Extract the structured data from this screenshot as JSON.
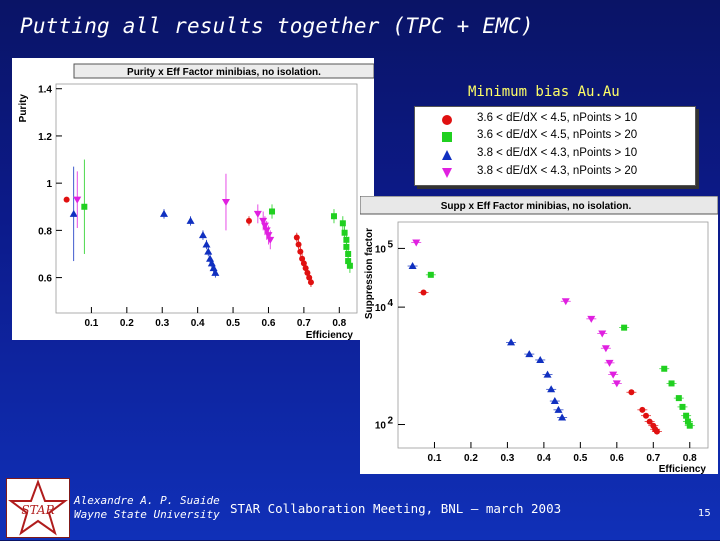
{
  "slide": {
    "title": "Putting all results together (TPC + EMC)",
    "min_bias_label": "Minimum bias Au.Au",
    "author_line1": "Alexandre A. P. Suaide",
    "author_line2": "Wayne State University",
    "meeting": "STAR Collaboration Meeting, BNL – march 2003",
    "page_number": "15",
    "logo_text": "STAR"
  },
  "legend": [
    {
      "symbol": "circle",
      "color": "#e01010",
      "label": "3.6 < dE/dX < 4.5, nPoints > 10"
    },
    {
      "symbol": "square",
      "color": "#20d020",
      "label": "3.6 < dE/dX < 4.5, nPoints > 20"
    },
    {
      "symbol": "triangle-up",
      "color": "#1030c0",
      "label": "3.8 < dE/dX < 4.3, nPoints > 10"
    },
    {
      "symbol": "triangle-down",
      "color": "#e020e0",
      "label": "3.8 < dE/dX < 4.3, nPoints > 20"
    }
  ],
  "chart_data": [
    {
      "type": "scatter",
      "title": "Purity x Eff Factor minibias, no isolation.",
      "xlabel": "Efficiency",
      "ylabel": "Purity",
      "xlim": [
        0.0,
        0.85
      ],
      "ylim": [
        0.45,
        1.42
      ],
      "xticks": [
        "0.1",
        "0.2",
        "0.3",
        "0.4",
        "0.5",
        "0.6",
        "0.7",
        "0.8"
      ],
      "xtick_values": [
        0.1,
        0.2,
        0.3,
        0.4,
        0.5,
        0.6,
        0.7,
        0.8
      ],
      "yticks": [
        "0.6",
        "0.8",
        "1",
        "1.2",
        "1.4"
      ],
      "ytick_values": [
        0.6,
        0.8,
        1.0,
        1.2,
        1.4
      ],
      "series": [
        {
          "name": "red",
          "symbol": "circle",
          "color": "#e01010",
          "x": [
            0.03,
            0.545,
            0.68,
            0.685,
            0.69,
            0.695,
            0.7,
            0.705,
            0.71,
            0.715,
            0.72
          ],
          "y": [
            0.93,
            0.84,
            0.77,
            0.74,
            0.71,
            0.68,
            0.66,
            0.64,
            0.62,
            0.6,
            0.58
          ],
          "yerr": [
            0.0,
            0.02,
            0.02,
            0.02,
            0.02,
            0.02,
            0.02,
            0.02,
            0.02,
            0.02,
            0.02
          ]
        },
        {
          "name": "green",
          "symbol": "square",
          "color": "#20d020",
          "x": [
            0.08,
            0.61,
            0.785,
            0.81,
            0.815,
            0.82,
            0.82,
            0.825,
            0.825,
            0.83
          ],
          "y": [
            0.9,
            0.88,
            0.86,
            0.83,
            0.79,
            0.76,
            0.73,
            0.7,
            0.67,
            0.65
          ],
          "yerr": [
            0.2,
            0.03,
            0.03,
            0.03,
            0.03,
            0.03,
            0.03,
            0.03,
            0.03,
            0.03
          ]
        },
        {
          "name": "blue",
          "symbol": "triangle-up",
          "color": "#1030c0",
          "x": [
            0.05,
            0.305,
            0.38,
            0.415,
            0.425,
            0.43,
            0.435,
            0.44,
            0.445,
            0.45
          ],
          "y": [
            0.87,
            0.87,
            0.84,
            0.78,
            0.74,
            0.71,
            0.68,
            0.66,
            0.64,
            0.62
          ],
          "yerr": [
            0.2,
            0.02,
            0.02,
            0.02,
            0.02,
            0.02,
            0.02,
            0.02,
            0.02,
            0.02
          ]
        },
        {
          "name": "magenta",
          "symbol": "triangle-down",
          "color": "#e020e0",
          "x": [
            0.06,
            0.48,
            0.57,
            0.585,
            0.59,
            0.595,
            0.6,
            0.605
          ],
          "y": [
            0.93,
            0.92,
            0.87,
            0.84,
            0.82,
            0.8,
            0.78,
            0.76
          ],
          "yerr": [
            0.12,
            0.12,
            0.04,
            0.04,
            0.04,
            0.04,
            0.04,
            0.04
          ]
        }
      ]
    },
    {
      "type": "scatter",
      "title": "Supp x Eff Factor minibias, no isolation.",
      "xlabel": "Efficiency",
      "ylabel": "Suppression factor",
      "xscale": "linear",
      "yscale": "log",
      "xlim": [
        0.0,
        0.85
      ],
      "ylim_log10": [
        1.6,
        5.45
      ],
      "xticks": [
        "0.1",
        "0.2",
        "0.3",
        "0.4",
        "0.5",
        "0.6",
        "0.7",
        "0.8"
      ],
      "xtick_values": [
        0.1,
        0.2,
        0.3,
        0.4,
        0.5,
        0.6,
        0.7,
        0.8
      ],
      "yticks": [
        "10^2",
        "10^4",
        "10^5"
      ],
      "ytick_log10": [
        2,
        4,
        5
      ],
      "series": [
        {
          "name": "red",
          "symbol": "circle",
          "color": "#e01010",
          "x": [
            0.07,
            0.64,
            0.67,
            0.68,
            0.69,
            0.7,
            0.705,
            0.71
          ],
          "log10y": [
            4.25,
            2.55,
            2.25,
            2.15,
            2.05,
            1.98,
            1.92,
            1.88
          ]
        },
        {
          "name": "green",
          "symbol": "square",
          "color": "#20d020",
          "x": [
            0.09,
            0.62,
            0.73,
            0.75,
            0.77,
            0.78,
            0.79,
            0.795,
            0.8
          ],
          "log10y": [
            4.55,
            3.65,
            2.95,
            2.7,
            2.45,
            2.3,
            2.15,
            2.05,
            1.98
          ]
        },
        {
          "name": "blue",
          "symbol": "triangle-up",
          "color": "#1030c0",
          "x": [
            0.04,
            0.31,
            0.36,
            0.39,
            0.41,
            0.42,
            0.43,
            0.44,
            0.45
          ],
          "log10y": [
            4.7,
            3.4,
            3.2,
            3.1,
            2.85,
            2.6,
            2.4,
            2.25,
            2.12
          ]
        },
        {
          "name": "magenta",
          "symbol": "triangle-down",
          "color": "#e020e0",
          "x": [
            0.05,
            0.46,
            0.53,
            0.56,
            0.57,
            0.58,
            0.59,
            0.6
          ],
          "log10y": [
            5.1,
            4.1,
            3.8,
            3.55,
            3.3,
            3.05,
            2.85,
            2.7
          ]
        }
      ]
    }
  ]
}
